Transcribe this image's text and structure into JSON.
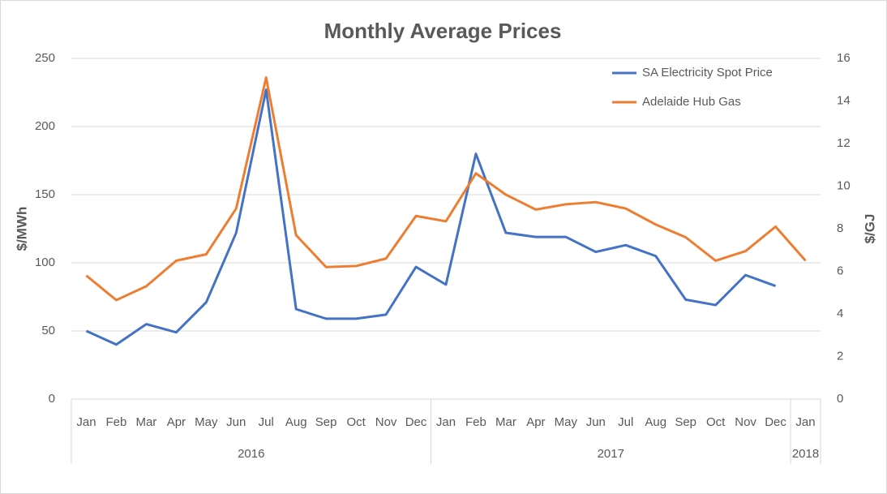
{
  "chart_data": {
    "type": "line",
    "title": "Monthly Average Prices",
    "categories": [
      "Jan",
      "Feb",
      "Mar",
      "Apr",
      "May",
      "Jun",
      "Jul",
      "Aug",
      "Sep",
      "Oct",
      "Nov",
      "Dec",
      "Jan",
      "Feb",
      "Mar",
      "Apr",
      "May",
      "Jun",
      "Jul",
      "Aug",
      "Sep",
      "Oct",
      "Nov",
      "Dec",
      "Jan"
    ],
    "category_groups": [
      {
        "name": "2016",
        "count": 12
      },
      {
        "name": "2017",
        "count": 12
      },
      {
        "name": "2018",
        "count": 1
      }
    ],
    "series": [
      {
        "name": "SA Electricity Spot Price",
        "color": "#4472c4",
        "axis": "y",
        "values": [
          50,
          40,
          55,
          49,
          71,
          122,
          227,
          66,
          59,
          59,
          62,
          97,
          84,
          180,
          122,
          119,
          119,
          108,
          113,
          105,
          73,
          69,
          91,
          83,
          null
        ]
      },
      {
        "name": "Adelaide Hub Gas",
        "color": "#ed7d31",
        "axis": "y2",
        "values": [
          5.8,
          4.65,
          5.3,
          6.5,
          6.8,
          8.95,
          15.1,
          7.7,
          6.2,
          6.25,
          6.6,
          8.6,
          8.35,
          10.6,
          9.6,
          8.9,
          9.15,
          9.25,
          8.95,
          8.2,
          7.6,
          6.5,
          6.95,
          8.1,
          6.5
        ]
      }
    ],
    "ylabel": "$/MWh",
    "y2label": "$/GJ",
    "ylim": [
      0,
      250
    ],
    "yticks": [
      0,
      50,
      100,
      150,
      200,
      250
    ],
    "y2lim": [
      0,
      16
    ],
    "y2ticks": [
      0,
      2,
      4,
      6,
      8,
      10,
      12,
      14,
      16
    ],
    "grid": true,
    "legend": "top-right"
  }
}
